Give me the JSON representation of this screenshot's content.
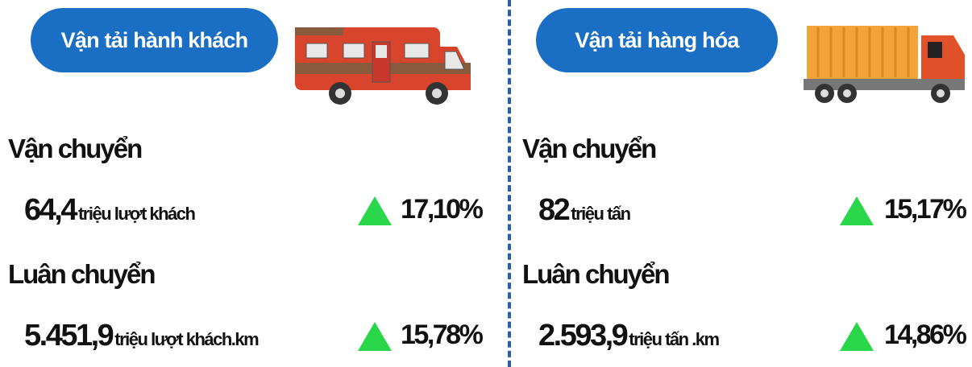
{
  "panels": [
    {
      "title": "Vận tải hành khách",
      "sections": [
        {
          "heading": "Vận chuyển",
          "value": "64,4",
          "unit": "triệu lượt khách",
          "change": "17,10%"
        },
        {
          "heading": "Luân chuyển",
          "value": "5.451,9",
          "unit": "triệu lượt khách.km",
          "change": "15,78%"
        }
      ]
    },
    {
      "title": "Vận tải hàng hóa",
      "sections": [
        {
          "heading": "Vận chuyển",
          "value": "82",
          "unit": "triệu tấn",
          "change": "15,17%"
        },
        {
          "heading": "Luân chuyển",
          "value": "2.593,9",
          "unit": "triệu tấn .km",
          "change": "14,86%"
        }
      ]
    }
  ]
}
